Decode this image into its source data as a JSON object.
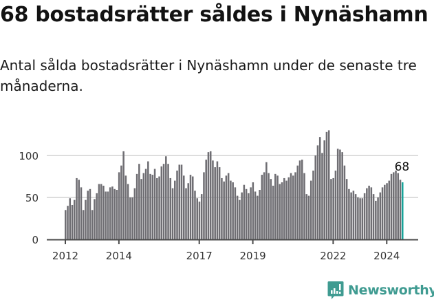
{
  "header": {
    "title": "68 bostadsrätter såldes i Nynäshamn",
    "subtitle": "Antal sålda bostadsrätter i Nynäshamn under de senaste tre månaderna."
  },
  "brand": {
    "name": "Newsworthy",
    "color": "#3f9b91"
  },
  "colors": {
    "bar": "#6f6e73",
    "highlight": "#17a39a",
    "grid": "#dddddd",
    "axis": "#4a4a4a"
  },
  "chart_data": {
    "type": "bar",
    "title": "68 bostadsrätter såldes i Nynäshamn",
    "subtitle": "Antal sålda bostadsrätter i Nynäshamn under de senaste tre månaderna.",
    "xlabel": "",
    "ylabel": "",
    "ylim": [
      0,
      135
    ],
    "yticks": [
      0,
      50,
      100
    ],
    "xtick_labels": [
      "2012",
      "2014",
      "2017",
      "2019",
      "2022",
      "2024"
    ],
    "grid": true,
    "legend": null,
    "annotation": {
      "label": "68",
      "target": "last"
    },
    "start": "2012-01",
    "frequency": "monthly",
    "values": [
      35,
      40,
      49,
      41,
      47,
      73,
      71,
      62,
      35,
      47,
      58,
      60,
      35,
      48,
      55,
      66,
      66,
      64,
      57,
      57,
      62,
      63,
      60,
      59,
      80,
      88,
      105,
      76,
      66,
      50,
      50,
      61,
      78,
      90,
      72,
      79,
      84,
      93,
      78,
      77,
      84,
      73,
      75,
      87,
      90,
      99,
      90,
      73,
      61,
      70,
      82,
      89,
      89,
      76,
      61,
      67,
      77,
      75,
      58,
      49,
      45,
      54,
      80,
      95,
      104,
      105,
      94,
      86,
      93,
      86,
      73,
      69,
      76,
      79,
      70,
      68,
      62,
      52,
      47,
      56,
      65,
      60,
      55,
      62,
      68,
      57,
      52,
      59,
      77,
      80,
      92,
      79,
      72,
      64,
      78,
      76,
      66,
      68,
      73,
      70,
      74,
      79,
      76,
      80,
      88,
      94,
      95,
      79,
      54,
      52,
      70,
      82,
      100,
      112,
      122,
      103,
      118,
      128,
      130,
      72,
      73,
      82,
      108,
      107,
      104,
      88,
      72,
      60,
      56,
      58,
      54,
      50,
      49,
      49,
      55,
      61,
      64,
      62,
      54,
      46,
      50,
      56,
      62,
      65,
      67,
      70,
      78,
      80,
      82,
      79,
      71,
      68
    ]
  }
}
